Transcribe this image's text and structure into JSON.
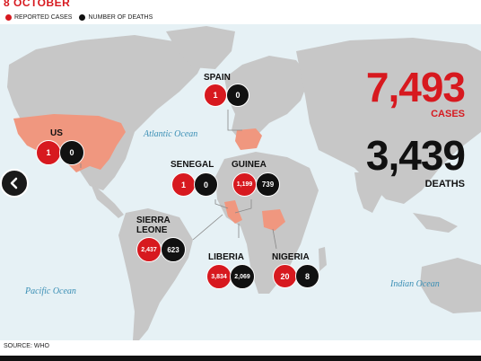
{
  "header": {
    "date": "8 OCTOBER"
  },
  "legend": {
    "reported": {
      "label": "REPORTED CASES",
      "color": "#d7191f"
    },
    "deaths": {
      "label": "NUMBER OF DEATHS",
      "color": "#111111"
    }
  },
  "oceans": {
    "atlantic": "Atlantic Ocean",
    "pacific": "Pacific Ocean",
    "indian": "Indian Ocean"
  },
  "countries": {
    "us": {
      "name": "US",
      "cases": "1",
      "deaths": "0"
    },
    "spain": {
      "name": "SPAIN",
      "cases": "1",
      "deaths": "0"
    },
    "senegal": {
      "name": "SENEGAL",
      "cases": "1",
      "deaths": "0"
    },
    "guinea": {
      "name": "GUINEA",
      "cases": "1,199",
      "deaths": "739"
    },
    "sierra_leone": {
      "name_line1": "SIERRA",
      "name_line2": "LEONE",
      "cases": "2,437",
      "deaths": "623"
    },
    "liberia": {
      "name": "LIBERIA",
      "cases": "3,834",
      "deaths": "2,069"
    },
    "nigeria": {
      "name": "NIGERIA",
      "cases": "20",
      "deaths": "8"
    }
  },
  "totals": {
    "cases": {
      "value": "7,493",
      "label": "CASES"
    },
    "deaths": {
      "value": "3,439",
      "label": "DEATHS"
    }
  },
  "footer": {
    "source": "SOURCE: WHO"
  },
  "colors": {
    "ocean": "#e6f1f5",
    "land": "#c7c7c7",
    "highlight": "#f0977f",
    "accent": "#d7191f"
  },
  "icons": {
    "prev": "chevron-left-icon"
  }
}
